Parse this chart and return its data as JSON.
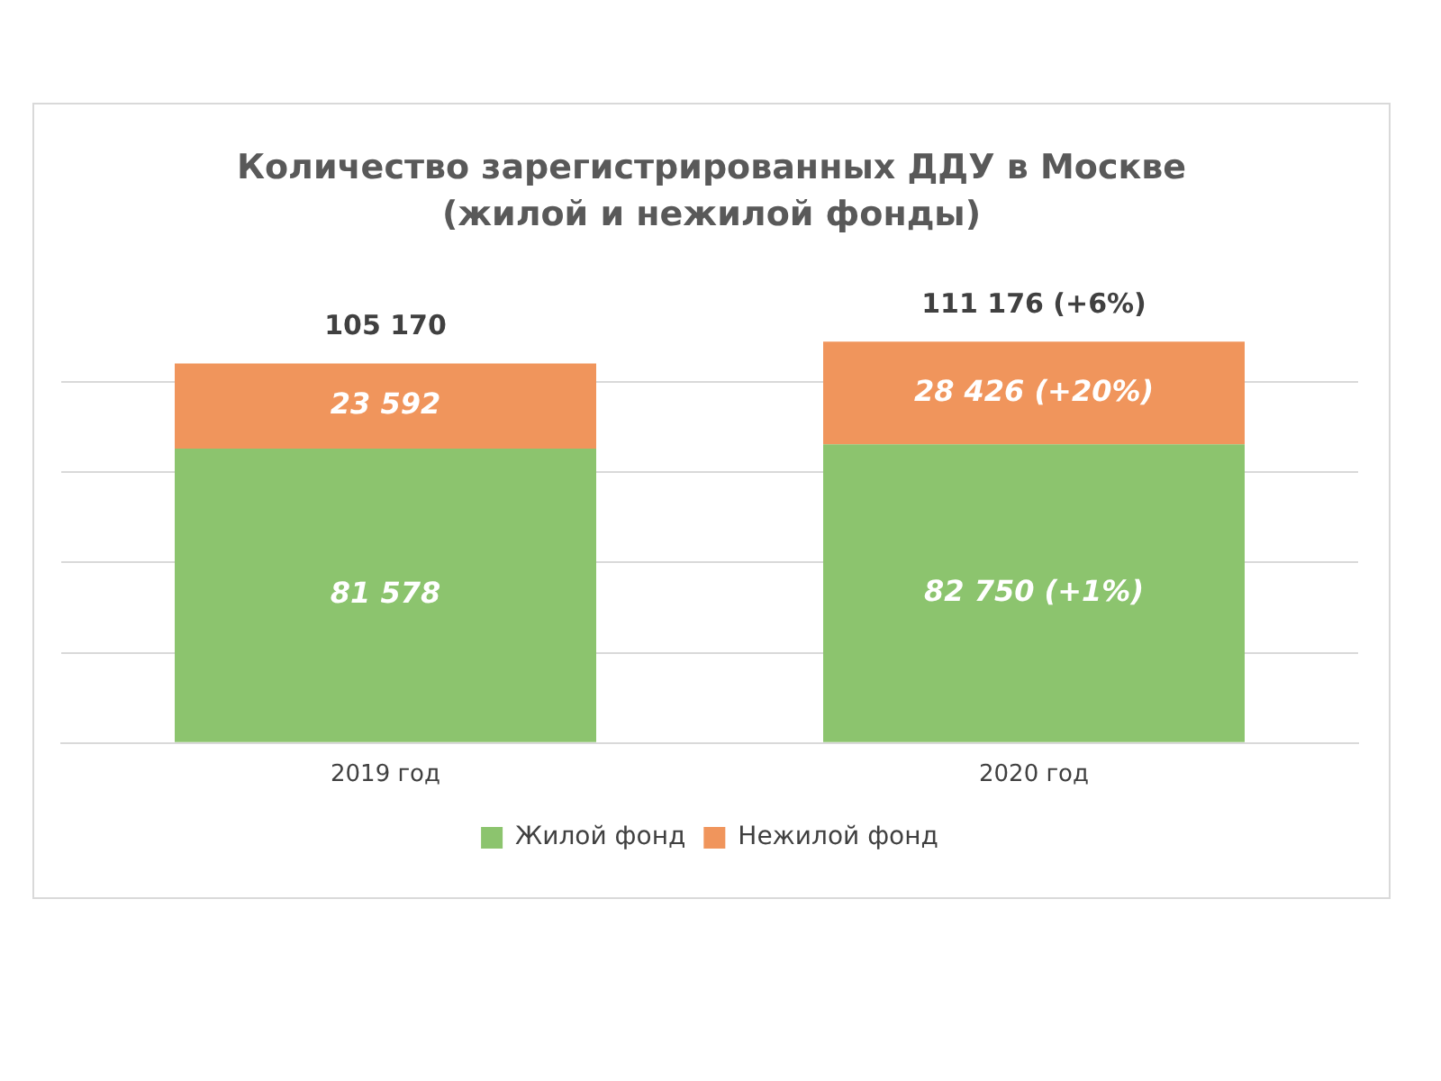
{
  "chart_data": {
    "type": "bar",
    "title": "Количество зарегистрированных ДДУ в Москве (жилой и нежилой фонды)",
    "categories": [
      "2019 год",
      "2020 год"
    ],
    "stacked": true,
    "series": [
      {
        "name": "Жилой фонд",
        "color": "#8cc46e",
        "values": [
          81578,
          82750
        ],
        "value_labels": [
          "81 578",
          "82 750 (+1%)"
        ]
      },
      {
        "name": "Нежилой фонд",
        "color": "#f0955c",
        "values": [
          23592,
          28426
        ],
        "value_labels": [
          "23 592",
          "28 426 (+20%)"
        ]
      }
    ],
    "totals": [
      "105 170",
      "111 176 (+6%)"
    ],
    "yticks": [
      {
        "value": 0,
        "label": null
      },
      {
        "value": 25000,
        "label": null
      },
      {
        "value": 50000,
        "label": null
      },
      {
        "value": 75000,
        "label": null
      },
      {
        "value": 100000,
        "label": null
      }
    ],
    "grid": "y",
    "tick_labels": "x",
    "legend": "bottom"
  }
}
